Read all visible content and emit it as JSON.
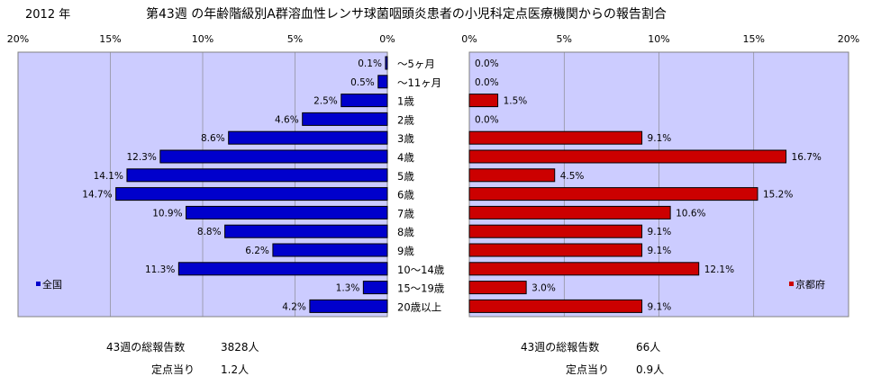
{
  "header": {
    "year": "2012 年",
    "title": "第43週 の年齢階級別A群溶血性レンサ球菌咽頭炎患者の小児科定点医療機関からの報告割合"
  },
  "colors": {
    "panel_bg": "#ccccff",
    "national_bar": "#0000cc",
    "kyoto_bar": "#cc0000",
    "bar_outline": "#000000"
  },
  "chart_data": [
    {
      "type": "bar",
      "orientation": "horizontal",
      "direction": "right-to-left",
      "legend": "全国",
      "legend_position": "bottom-left",
      "xlim": [
        0,
        20
      ],
      "ticks": [
        "0%",
        "5%",
        "10%",
        "15%",
        "20%"
      ],
      "tick_values": [
        0,
        5,
        10,
        15,
        20
      ],
      "categories": [
        "〜5ヶ月",
        "〜11ヶ月",
        "1歳",
        "2歳",
        "3歳",
        "4歳",
        "5歳",
        "6歳",
        "7歳",
        "8歳",
        "9歳",
        "10〜14歳",
        "15〜19歳",
        "20歳以上"
      ],
      "values": [
        0.1,
        0.5,
        2.5,
        4.6,
        8.6,
        12.3,
        14.1,
        14.7,
        10.9,
        8.8,
        6.2,
        11.3,
        1.3,
        4.2
      ],
      "labels": [
        "0.1%",
        "0.5%",
        "2.5%",
        "4.6%",
        "8.6%",
        "12.3%",
        "14.1%",
        "14.7%",
        "10.9%",
        "8.8%",
        "6.2%",
        "11.3%",
        "1.3%",
        "4.2%"
      ]
    },
    {
      "type": "bar",
      "orientation": "horizontal",
      "direction": "left-to-right",
      "legend": "京都府",
      "legend_position": "bottom-right",
      "xlim": [
        0,
        20
      ],
      "ticks": [
        "0%",
        "5%",
        "10%",
        "15%",
        "20%"
      ],
      "tick_values": [
        0,
        5,
        10,
        15,
        20
      ],
      "categories": [
        "〜5ヶ月",
        "〜11ヶ月",
        "1歳",
        "2歳",
        "3歳",
        "4歳",
        "5歳",
        "6歳",
        "7歳",
        "8歳",
        "9歳",
        "10〜14歳",
        "15〜19歳",
        "20歳以上"
      ],
      "values": [
        0.0,
        0.0,
        1.5,
        0.0,
        9.1,
        16.7,
        4.5,
        15.2,
        10.6,
        9.1,
        9.1,
        12.1,
        3.0,
        9.1
      ],
      "labels": [
        "0.0%",
        "0.0%",
        "1.5%",
        "0.0%",
        "9.1%",
        "16.7%",
        "4.5%",
        "15.2%",
        "10.6%",
        "9.1%",
        "9.1%",
        "12.1%",
        "3.0%",
        "9.1%"
      ]
    }
  ],
  "summary": {
    "national": {
      "total_label": "43週の総報告数",
      "total_value": "3828人",
      "per_label": "定点当り",
      "per_value": "1.2人"
    },
    "kyoto": {
      "total_label": "43週の総報告数",
      "total_value": "66人",
      "per_label": "定点当り",
      "per_value": "0.9人"
    }
  }
}
